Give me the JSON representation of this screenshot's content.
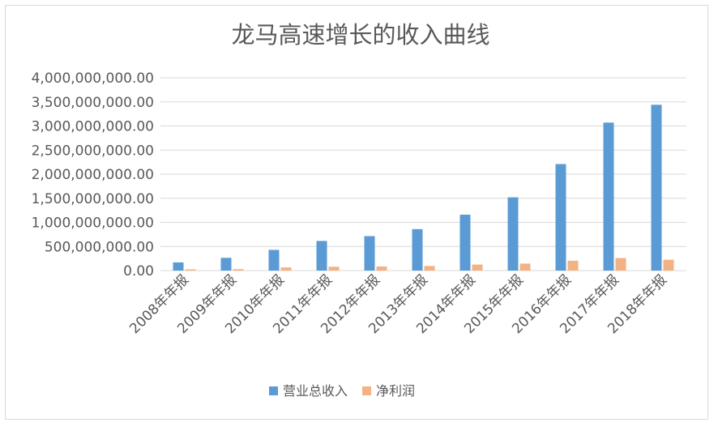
{
  "chart_data": {
    "type": "bar",
    "title": "龙马高速增长的收入曲线",
    "xlabel": "",
    "ylabel": "",
    "categories": [
      "2008年年报",
      "2009年年报",
      "2010年年报",
      "2011年年报",
      "2012年年报",
      "2013年年报",
      "2014年年报",
      "2015年年报",
      "2016年年报",
      "2017年年报",
      "2018年年报"
    ],
    "series": [
      {
        "name": "营业总收入",
        "color": "#5b9bd5",
        "values": [
          170000000,
          265000000,
          430000000,
          615000000,
          715000000,
          860000000,
          1160000000,
          1520000000,
          2210000000,
          3070000000,
          3440000000
        ]
      },
      {
        "name": "净利润",
        "color": "#f4b183",
        "values": [
          25000000,
          30000000,
          65000000,
          80000000,
          85000000,
          95000000,
          125000000,
          145000000,
          205000000,
          260000000,
          225000000
        ]
      }
    ],
    "ylim": [
      0,
      4000000000
    ],
    "yticks": [
      "0.00",
      "500,000,000.00",
      "1,000,000,000.00",
      "1,500,000,000.00",
      "2,000,000,000.00",
      "2,500,000,000.00",
      "3,000,000,000.00",
      "3,500,000,000.00",
      "4,000,000,000.00"
    ],
    "grid": true,
    "legend_position": "bottom"
  }
}
